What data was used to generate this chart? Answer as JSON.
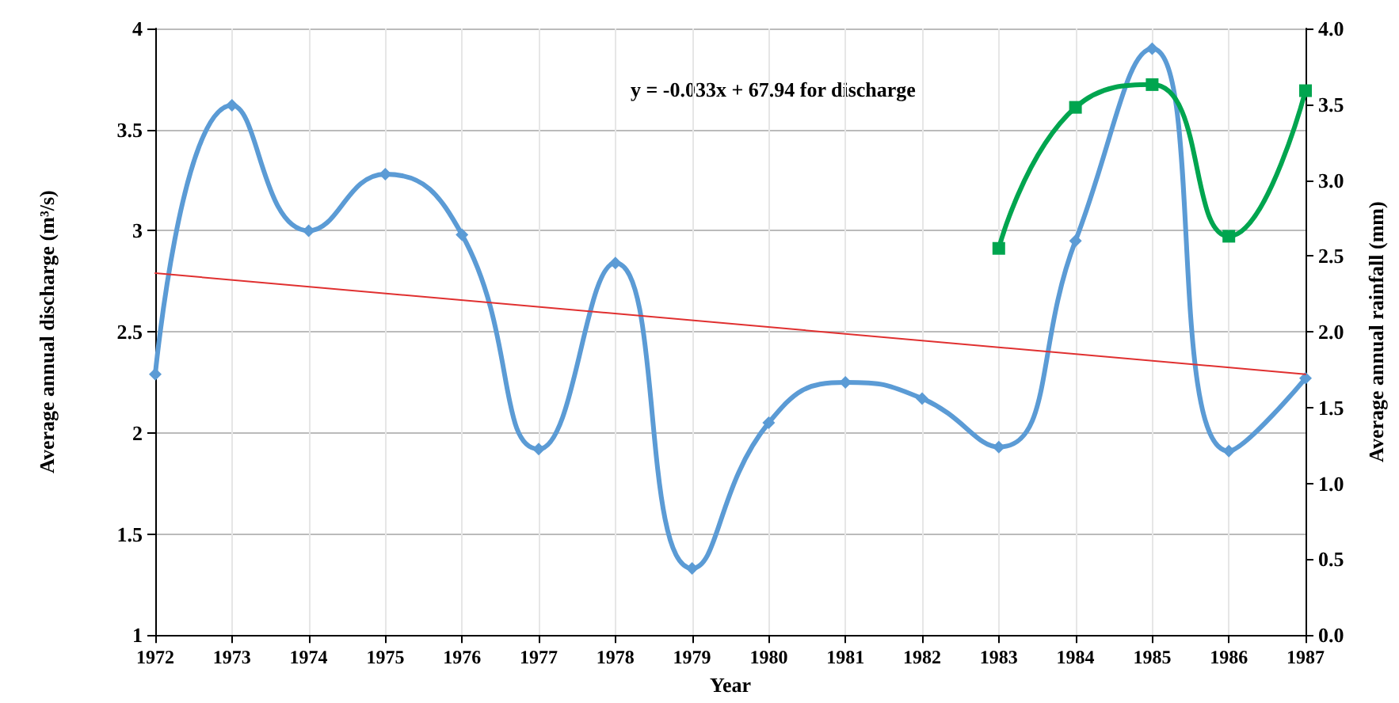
{
  "chart_data": {
    "type": "line",
    "xlabel": "Year",
    "ylabel": "Average annual discharge (m³/s)",
    "y2label": "Average annual rainfall (mm)",
    "annotations": [
      "y = -0.033x + 67.94 for discharge"
    ],
    "xlim": [
      1972,
      1987
    ],
    "xticks": [
      1972,
      1973,
      1974,
      1975,
      1976,
      1977,
      1978,
      1979,
      1980,
      1981,
      1982,
      1983,
      1984,
      1985,
      1986,
      1987
    ],
    "ylim": [
      1,
      4
    ],
    "yticks": [
      1,
      1.5,
      2,
      2.5,
      3,
      3.5,
      4
    ],
    "y2lim": [
      0,
      4
    ],
    "y2ticks": [
      {
        "value": 0,
        "label": "0.0"
      },
      {
        "value": 0.5,
        "label": "0.5"
      },
      {
        "value": 1,
        "label": "1.0"
      },
      {
        "value": 1.5,
        "label": "1.5"
      },
      {
        "value": 2,
        "label": "2.0"
      },
      {
        "value": 2.5,
        "label": "2.5"
      },
      {
        "value": 3,
        "label": "3.0"
      },
      {
        "value": 3.5,
        "label": "3.5"
      },
      {
        "value": 4,
        "label": "4.0"
      }
    ],
    "grid": true,
    "legend": false,
    "series": [
      {
        "color": "#5b9bd5",
        "marker": "diamond",
        "x": [
          1972,
          1973,
          1974,
          1975,
          1976,
          1977,
          1978,
          1979,
          1980,
          1981,
          1982,
          1983,
          1984,
          1985,
          1986,
          1987
        ],
        "values": [
          2.29,
          3.62,
          3.0,
          3.28,
          2.98,
          1.92,
          2.84,
          1.33,
          2.05,
          2.25,
          2.17,
          1.93,
          2.95,
          3.9,
          1.91,
          2.27
        ]
      },
      {
        "color": "#00a54f",
        "marker": "square",
        "axis": "y2",
        "x": [
          1983,
          1984,
          1985,
          1986,
          1987
        ],
        "values": [
          2.55,
          3.48,
          3.63,
          2.63,
          3.59
        ]
      },
      {
        "color": "#e03030",
        "marker": "none",
        "x": [
          1972,
          1987
        ],
        "values": [
          2.79,
          2.29
        ]
      }
    ]
  }
}
